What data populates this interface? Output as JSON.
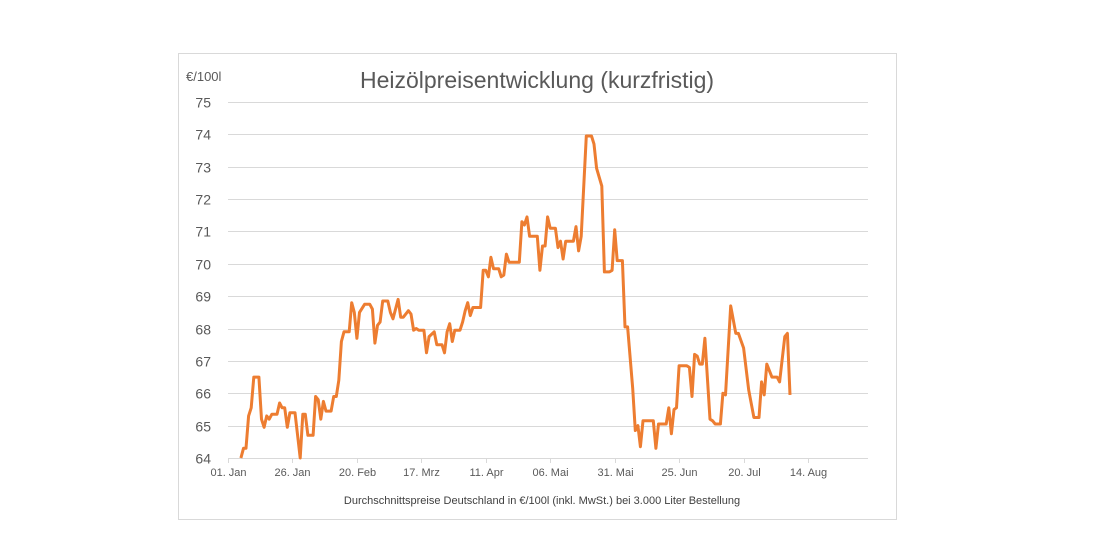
{
  "chart_data": {
    "type": "line",
    "title": "Heizölpreisentwicklung (kurzfristig)",
    "ylabel": "€/100l",
    "xlabel": "Durchschnittspreise Deutschland in €/100l (inkl. MwSt.) bei 3.000 Liter Bestellung",
    "ylim": [
      64,
      75
    ],
    "yticks": [
      64,
      65,
      66,
      67,
      68,
      69,
      70,
      71,
      72,
      73,
      74,
      75
    ],
    "xlim": [
      "01-01",
      "08-27"
    ],
    "xticks": [
      {
        "date": "01-01",
        "label": "01. Jan"
      },
      {
        "date": "01-26",
        "label": "26. Jan"
      },
      {
        "date": "02-20",
        "label": "20. Feb"
      },
      {
        "date": "03-17",
        "label": "17. Mrz"
      },
      {
        "date": "04-11",
        "label": "11. Apr"
      },
      {
        "date": "05-06",
        "label": "06. Mai"
      },
      {
        "date": "05-31",
        "label": "31. Mai"
      },
      {
        "date": "06-25",
        "label": "25. Jun"
      },
      {
        "date": "07-20",
        "label": "20. Jul"
      },
      {
        "date": "08-14",
        "label": "14. Aug"
      }
    ],
    "grid": true,
    "color": "#ed7d31",
    "points": [
      [
        "01-06",
        64.0
      ],
      [
        "01-07",
        64.3
      ],
      [
        "01-08",
        64.3
      ],
      [
        "01-09",
        65.3
      ],
      [
        "01-10",
        65.55
      ],
      [
        "01-11",
        66.5
      ],
      [
        "01-13",
        66.5
      ],
      [
        "01-14",
        65.2
      ],
      [
        "01-15",
        64.95
      ],
      [
        "01-16",
        65.3
      ],
      [
        "01-17",
        65.2
      ],
      [
        "01-18",
        65.35
      ],
      [
        "01-20",
        65.35
      ],
      [
        "01-21",
        65.7
      ],
      [
        "01-22",
        65.55
      ],
      [
        "01-23",
        65.55
      ],
      [
        "01-24",
        64.95
      ],
      [
        "01-25",
        65.4
      ],
      [
        "01-27",
        65.4
      ],
      [
        "01-29",
        64.0
      ],
      [
        "01-30",
        65.35
      ],
      [
        "01-31",
        65.35
      ],
      [
        "02-01",
        64.7
      ],
      [
        "02-03",
        64.7
      ],
      [
        "02-04",
        65.9
      ],
      [
        "02-05",
        65.8
      ],
      [
        "02-06",
        65.2
      ],
      [
        "02-07",
        65.75
      ],
      [
        "02-08",
        65.45
      ],
      [
        "02-10",
        65.45
      ],
      [
        "02-11",
        65.9
      ],
      [
        "02-12",
        65.9
      ],
      [
        "02-13",
        66.4
      ],
      [
        "02-14",
        67.6
      ],
      [
        "02-15",
        67.9
      ],
      [
        "02-17",
        67.9
      ],
      [
        "02-18",
        68.8
      ],
      [
        "02-19",
        68.5
      ],
      [
        "02-20",
        67.7
      ],
      [
        "02-21",
        68.5
      ],
      [
        "02-23",
        68.75
      ],
      [
        "02-25",
        68.75
      ],
      [
        "02-26",
        68.6
      ],
      [
        "02-27",
        67.55
      ],
      [
        "02-28",
        68.1
      ],
      [
        "03-01",
        68.2
      ],
      [
        "03-02",
        68.85
      ],
      [
        "03-04",
        68.85
      ],
      [
        "03-05",
        68.5
      ],
      [
        "03-06",
        68.3
      ],
      [
        "03-08",
        68.9
      ],
      [
        "03-09",
        68.35
      ],
      [
        "03-10",
        68.35
      ],
      [
        "03-12",
        68.55
      ],
      [
        "03-13",
        68.45
      ],
      [
        "03-14",
        67.95
      ],
      [
        "03-15",
        68.0
      ],
      [
        "03-16",
        67.95
      ],
      [
        "03-18",
        67.95
      ],
      [
        "03-19",
        67.25
      ],
      [
        "03-20",
        67.75
      ],
      [
        "03-22",
        67.9
      ],
      [
        "03-23",
        67.5
      ],
      [
        "03-25",
        67.5
      ],
      [
        "03-26",
        67.25
      ],
      [
        "03-27",
        67.9
      ],
      [
        "03-28",
        68.15
      ],
      [
        "03-29",
        67.6
      ],
      [
        "03-30",
        67.95
      ],
      [
        "04-01",
        67.95
      ],
      [
        "04-02",
        68.2
      ],
      [
        "04-03",
        68.55
      ],
      [
        "04-04",
        68.8
      ],
      [
        "04-05",
        68.4
      ],
      [
        "04-06",
        68.65
      ],
      [
        "04-09",
        68.65
      ],
      [
        "04-10",
        69.8
      ],
      [
        "04-11",
        69.8
      ],
      [
        "04-12",
        69.6
      ],
      [
        "04-13",
        70.2
      ],
      [
        "04-14",
        69.85
      ],
      [
        "04-16",
        69.85
      ],
      [
        "04-17",
        69.6
      ],
      [
        "04-18",
        69.65
      ],
      [
        "04-19",
        70.3
      ],
      [
        "04-20",
        70.05
      ],
      [
        "04-24",
        70.05
      ],
      [
        "04-25",
        71.3
      ],
      [
        "04-26",
        71.2
      ],
      [
        "04-27",
        71.45
      ],
      [
        "04-28",
        70.85
      ],
      [
        "05-01",
        70.85
      ],
      [
        "05-02",
        69.8
      ],
      [
        "05-03",
        70.55
      ],
      [
        "05-04",
        70.55
      ],
      [
        "05-05",
        71.45
      ],
      [
        "05-06",
        71.1
      ],
      [
        "05-08",
        71.1
      ],
      [
        "05-09",
        70.5
      ],
      [
        "05-10",
        70.7
      ],
      [
        "05-11",
        70.15
      ],
      [
        "05-12",
        70.7
      ],
      [
        "05-15",
        70.7
      ],
      [
        "05-16",
        71.15
      ],
      [
        "05-17",
        70.4
      ],
      [
        "05-18",
        70.85
      ],
      [
        "05-20",
        73.95
      ],
      [
        "05-22",
        73.95
      ],
      [
        "05-23",
        73.7
      ],
      [
        "05-24",
        72.95
      ],
      [
        "05-26",
        72.4
      ],
      [
        "05-27",
        69.75
      ],
      [
        "05-29",
        69.75
      ],
      [
        "05-30",
        69.8
      ],
      [
        "05-31",
        71.05
      ],
      [
        "06-01",
        70.1
      ],
      [
        "06-03",
        70.1
      ],
      [
        "06-04",
        68.05
      ],
      [
        "06-05",
        68.05
      ],
      [
        "06-07",
        66.15
      ],
      [
        "06-08",
        64.85
      ],
      [
        "06-09",
        65.0
      ],
      [
        "06-10",
        64.35
      ],
      [
        "06-11",
        65.15
      ],
      [
        "06-15",
        65.15
      ],
      [
        "06-16",
        64.3
      ],
      [
        "06-17",
        65.05
      ],
      [
        "06-20",
        65.05
      ],
      [
        "06-21",
        65.55
      ],
      [
        "06-22",
        64.75
      ],
      [
        "06-23",
        65.5
      ],
      [
        "06-24",
        65.55
      ],
      [
        "06-25",
        66.85
      ],
      [
        "06-28",
        66.85
      ],
      [
        "06-29",
        66.8
      ],
      [
        "06-30",
        65.9
      ],
      [
        "07-01",
        67.2
      ],
      [
        "07-02",
        67.15
      ],
      [
        "07-03",
        66.9
      ],
      [
        "07-04",
        66.9
      ],
      [
        "07-05",
        67.7
      ],
      [
        "07-07",
        65.2
      ],
      [
        "07-08",
        65.15
      ],
      [
        "07-09",
        65.05
      ],
      [
        "07-11",
        65.05
      ],
      [
        "07-12",
        66.0
      ],
      [
        "07-13",
        65.95
      ],
      [
        "07-15",
        68.7
      ],
      [
        "07-17",
        67.85
      ],
      [
        "07-18",
        67.85
      ],
      [
        "07-20",
        67.4
      ],
      [
        "07-22",
        66.1
      ],
      [
        "07-24",
        65.25
      ],
      [
        "07-26",
        65.25
      ],
      [
        "07-27",
        66.35
      ],
      [
        "07-28",
        65.95
      ],
      [
        "07-29",
        66.9
      ],
      [
        "07-31",
        66.5
      ],
      [
        "08-02",
        66.5
      ],
      [
        "08-03",
        66.35
      ],
      [
        "08-05",
        67.75
      ],
      [
        "08-06",
        67.85
      ],
      [
        "08-07",
        65.95
      ]
    ]
  }
}
